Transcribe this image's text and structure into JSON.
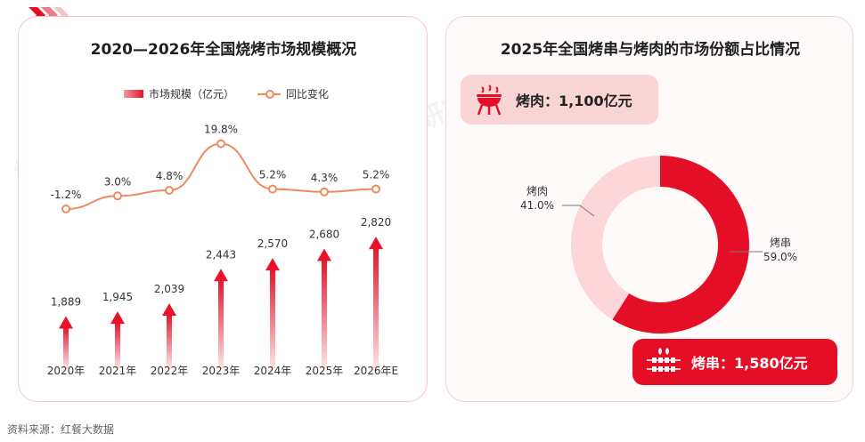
{
  "left_chart": {
    "title": "2020—2026年全国烧烤市场规模概况",
    "legend_bar": "市场规模（亿元）",
    "legend_line": "同比变化"
  },
  "right_chart": {
    "title": "2025年全国烤串与烤肉的市场份额占比情况",
    "meat_pill_label": "烤肉：1,100亿元",
    "skewer_pill_label": "烤串：1,580亿元",
    "slice_meat_name": "烤肉",
    "slice_meat_pct": "41.0%",
    "slice_skewer_name": "烤串",
    "slice_skewer_pct": "59.0%"
  },
  "source": "资料来源：红餐大数据",
  "watermark": "红餐 产业研究院",
  "colors": {
    "accent_red": "#e40f27",
    "pink": "#f9d4d5",
    "line_orange": "#ee8a5d"
  },
  "chart_data": [
    {
      "type": "bar",
      "categories": [
        "2020年",
        "2021年",
        "2022年",
        "2023年",
        "2024年",
        "2025年",
        "2026年E"
      ],
      "series": [
        {
          "name": "市场规模（亿元）",
          "values": [
            1889,
            1945,
            2039,
            2443,
            2570,
            2680,
            2820
          ],
          "labels": [
            "1,889",
            "1,945",
            "2,039",
            "2,443",
            "2,570",
            "2,680",
            "2,820"
          ]
        },
        {
          "name": "同比变化",
          "type": "line",
          "values": [
            -1.2,
            3.0,
            4.8,
            19.8,
            5.2,
            4.3,
            5.2
          ],
          "labels": [
            "-1.2%",
            "3.0%",
            "4.8%",
            "19.8%",
            "5.2%",
            "4.3%",
            "5.2%"
          ]
        }
      ],
      "title": "2020—2026年全国烧烤市场规模概况",
      "legend": "top"
    },
    {
      "type": "pie",
      "categories": [
        "烤串",
        "烤肉"
      ],
      "values": [
        59.0,
        41.0
      ],
      "title": "2025年全国烤串与烤肉的市场份额占比情况"
    }
  ]
}
